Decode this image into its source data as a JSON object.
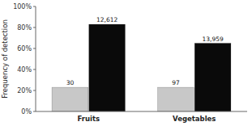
{
  "chart_data": {
    "type": "bar",
    "categories": [
      "Fruits",
      "Vegetables"
    ],
    "series": [
      {
        "color": "#c8c8c8",
        "values": [
          23,
          23
        ],
        "n_labels": [
          "30",
          "97"
        ]
      },
      {
        "color": "#0a0a0a",
        "values": [
          83,
          65
        ],
        "n_labels": [
          "12,612",
          "13,959"
        ]
      }
    ],
    "y_label": "Frequency of detection",
    "ylim": [
      0,
      100
    ],
    "yticks": [
      {
        "value": 0,
        "label": "0%"
      },
      {
        "value": 20,
        "label": "20%"
      },
      {
        "value": 40,
        "label": "40%"
      },
      {
        "value": 60,
        "label": "60%"
      },
      {
        "value": 80,
        "label": "80%"
      },
      {
        "value": 100,
        "label": "100%"
      }
    ],
    "grid": false
  }
}
